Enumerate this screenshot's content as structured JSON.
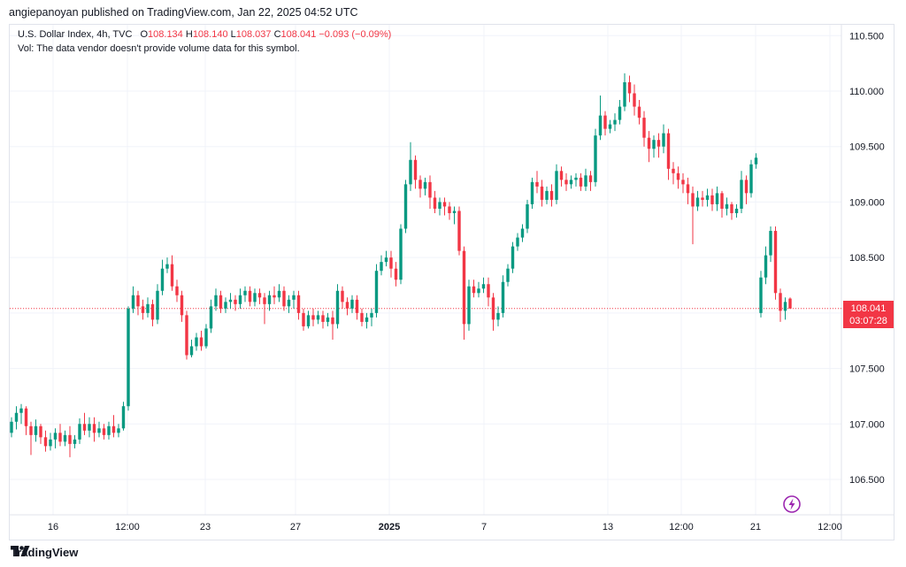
{
  "header": {
    "publisher": "angiepanoyan published on TradingView.com, Jan 22, 2025 04:52 UTC"
  },
  "legend": {
    "symbol": "U.S. Dollar Index, 4h, TVC",
    "o_label": "O",
    "o_value": "108.134",
    "h_label": "H",
    "h_value": "108.140",
    "l_label": "L",
    "l_value": "108.037",
    "c_label": "C",
    "c_value": "108.041",
    "change": "−0.093 (−0.09%)",
    "vol_note": "Vol: The data vendor doesn't provide volume data for this symbol."
  },
  "price_tag": {
    "price": "108.041",
    "countdown": "03:07:28"
  },
  "footer": {
    "brand": "TradingView"
  },
  "colors": {
    "up": "#089981",
    "down": "#f23645",
    "grid": "#f0f3fa",
    "text": "#131722"
  },
  "chart_data": {
    "type": "candlestick",
    "title": "U.S. Dollar Index, 4h, TVC",
    "ylim": [
      106.2,
      110.75
    ],
    "y_ticks": [
      "110.500",
      "110.000",
      "109.500",
      "109.000",
      "108.500",
      "108.000",
      "107.500",
      "107.000",
      "106.500"
    ],
    "x_ticks": [
      "16",
      "12:00",
      "23",
      "27",
      "2025",
      "7",
      "13",
      "12:00",
      "21",
      "12:00"
    ],
    "last_price": 108.041,
    "series": [
      [
        106.92,
        107.02,
        107.06,
        106.88
      ],
      [
        107.02,
        107.1,
        107.16,
        106.95
      ],
      [
        107.1,
        107.14,
        107.18,
        107.0
      ],
      [
        107.14,
        106.98,
        107.16,
        106.9
      ],
      [
        106.98,
        106.9,
        107.02,
        106.72
      ],
      [
        106.9,
        106.98,
        107.04,
        106.84
      ],
      [
        106.98,
        106.88,
        107.0,
        106.82
      ],
      [
        106.88,
        106.8,
        106.94,
        106.75
      ],
      [
        106.8,
        106.86,
        106.92,
        106.76
      ],
      [
        106.86,
        106.92,
        106.96,
        106.78
      ],
      [
        106.92,
        106.84,
        107.0,
        106.8
      ],
      [
        106.84,
        106.9,
        106.94,
        106.8
      ],
      [
        106.9,
        106.82,
        106.98,
        106.7
      ],
      [
        106.82,
        106.86,
        106.9,
        106.78
      ],
      [
        106.86,
        107.0,
        107.05,
        106.82
      ],
      [
        107.0,
        106.94,
        107.1,
        106.9
      ],
      [
        106.94,
        107.0,
        107.06,
        106.88
      ],
      [
        107.0,
        106.92,
        107.06,
        106.84
      ],
      [
        106.92,
        106.96,
        107.02,
        106.88
      ],
      [
        106.96,
        106.9,
        107.0,
        106.86
      ],
      [
        106.9,
        106.98,
        107.02,
        106.86
      ],
      [
        106.98,
        106.92,
        107.08,
        106.88
      ],
      [
        106.92,
        106.96,
        107.0,
        106.88
      ],
      [
        106.96,
        107.16,
        107.2,
        106.94
      ],
      [
        107.16,
        108.04,
        108.06,
        107.12
      ],
      [
        108.04,
        108.16,
        108.24,
        108.0
      ],
      [
        108.16,
        108.06,
        108.2,
        107.98
      ],
      [
        108.06,
        108.0,
        108.12,
        107.94
      ],
      [
        108.0,
        108.08,
        108.14,
        107.96
      ],
      [
        108.08,
        107.94,
        108.12,
        107.88
      ],
      [
        107.94,
        108.2,
        108.26,
        107.9
      ],
      [
        108.2,
        108.4,
        108.48,
        108.16
      ],
      [
        108.4,
        108.44,
        108.5,
        108.36
      ],
      [
        108.44,
        108.24,
        108.52,
        108.2
      ],
      [
        108.24,
        108.16,
        108.3,
        108.1
      ],
      [
        108.16,
        107.98,
        108.2,
        107.92
      ],
      [
        107.98,
        107.62,
        108.02,
        107.58
      ],
      [
        107.62,
        107.7,
        107.76,
        107.6
      ],
      [
        107.7,
        107.78,
        107.82,
        107.66
      ],
      [
        107.78,
        107.7,
        107.84,
        107.66
      ],
      [
        107.7,
        107.86,
        107.9,
        107.68
      ],
      [
        107.86,
        108.06,
        108.12,
        107.82
      ],
      [
        108.06,
        108.16,
        108.22,
        108.02
      ],
      [
        108.16,
        108.04,
        108.2,
        108.0
      ],
      [
        108.04,
        108.1,
        108.14,
        108.0
      ],
      [
        108.1,
        108.12,
        108.18,
        108.04
      ],
      [
        108.12,
        108.08,
        108.16,
        108.02
      ],
      [
        108.08,
        108.16,
        108.22,
        108.04
      ],
      [
        108.16,
        108.2,
        108.24,
        108.1
      ],
      [
        108.2,
        108.1,
        108.24,
        108.06
      ],
      [
        108.1,
        108.18,
        108.22,
        108.06
      ],
      [
        108.18,
        108.14,
        108.22,
        108.08
      ],
      [
        108.14,
        108.08,
        108.18,
        107.9
      ],
      [
        108.08,
        108.16,
        108.2,
        108.02
      ],
      [
        108.16,
        108.14,
        108.24,
        108.08
      ],
      [
        108.14,
        108.2,
        108.26,
        108.1
      ],
      [
        108.2,
        108.06,
        108.24,
        108.02
      ],
      [
        108.06,
        108.12,
        108.16,
        108.0
      ],
      [
        108.12,
        108.16,
        108.2,
        108.04
      ],
      [
        108.16,
        108.0,
        108.2,
        107.94
      ],
      [
        108.0,
        107.88,
        108.04,
        107.84
      ],
      [
        107.88,
        107.98,
        108.02,
        107.86
      ],
      [
        107.98,
        107.94,
        108.04,
        107.88
      ],
      [
        107.94,
        107.98,
        108.02,
        107.9
      ],
      [
        107.98,
        107.92,
        108.02,
        107.86
      ],
      [
        107.92,
        107.96,
        108.0,
        107.88
      ],
      [
        107.96,
        107.9,
        108.02,
        107.76
      ],
      [
        107.9,
        108.2,
        108.26,
        107.86
      ],
      [
        108.2,
        108.1,
        108.24,
        108.04
      ],
      [
        108.1,
        108.04,
        108.14,
        107.98
      ],
      [
        108.04,
        108.12,
        108.16,
        108.0
      ],
      [
        108.12,
        108.0,
        108.16,
        107.94
      ],
      [
        108.0,
        107.92,
        108.04,
        107.88
      ],
      [
        107.92,
        107.96,
        108.0,
        107.86
      ],
      [
        107.96,
        108.0,
        108.04,
        107.88
      ],
      [
        108.0,
        108.38,
        108.44,
        107.96
      ],
      [
        108.38,
        108.46,
        108.52,
        108.34
      ],
      [
        108.46,
        108.5,
        108.56,
        108.42
      ],
      [
        108.5,
        108.4,
        108.56,
        108.32
      ],
      [
        108.4,
        108.3,
        108.46,
        108.24
      ],
      [
        108.3,
        108.76,
        108.8,
        108.26
      ],
      [
        108.76,
        109.16,
        109.2,
        108.72
      ],
      [
        109.16,
        109.38,
        109.54,
        109.1
      ],
      [
        109.38,
        109.2,
        109.42,
        109.12
      ],
      [
        109.2,
        109.12,
        109.24,
        109.04
      ],
      [
        109.12,
        109.18,
        109.22,
        109.06
      ],
      [
        109.18,
        109.04,
        109.24,
        108.94
      ],
      [
        109.04,
        108.94,
        109.1,
        108.9
      ],
      [
        108.94,
        109.0,
        109.04,
        108.88
      ],
      [
        109.0,
        108.96,
        109.04,
        108.88
      ],
      [
        108.96,
        108.9,
        109.0,
        108.84
      ],
      [
        108.9,
        108.92,
        108.96,
        108.8
      ],
      [
        108.92,
        108.56,
        108.96,
        108.52
      ],
      [
        108.56,
        107.9,
        108.6,
        107.76
      ],
      [
        107.9,
        108.24,
        108.3,
        107.84
      ],
      [
        108.24,
        108.18,
        108.3,
        108.14
      ],
      [
        108.18,
        108.22,
        108.28,
        108.14
      ],
      [
        108.22,
        108.26,
        108.32,
        108.18
      ],
      [
        108.26,
        108.14,
        108.32,
        108.06
      ],
      [
        108.14,
        107.94,
        108.18,
        107.84
      ],
      [
        107.94,
        108.0,
        108.06,
        107.88
      ],
      [
        108.0,
        108.28,
        108.34,
        107.96
      ],
      [
        108.28,
        108.4,
        108.44,
        108.24
      ],
      [
        108.4,
        108.6,
        108.64,
        108.36
      ],
      [
        108.6,
        108.68,
        108.72,
        108.56
      ],
      [
        108.68,
        108.76,
        108.8,
        108.64
      ],
      [
        108.76,
        108.98,
        109.02,
        108.72
      ],
      [
        108.98,
        109.18,
        109.22,
        108.94
      ],
      [
        109.18,
        109.14,
        109.28,
        109.08
      ],
      [
        109.14,
        109.02,
        109.2,
        108.96
      ],
      [
        109.02,
        109.1,
        109.14,
        108.98
      ],
      [
        109.1,
        109.02,
        109.16,
        108.96
      ],
      [
        109.02,
        109.28,
        109.34,
        108.98
      ],
      [
        109.28,
        109.2,
        109.32,
        109.14
      ],
      [
        109.2,
        109.16,
        109.26,
        109.1
      ],
      [
        109.16,
        109.2,
        109.24,
        109.12
      ],
      [
        109.2,
        109.22,
        109.26,
        109.14
      ],
      [
        109.22,
        109.14,
        109.26,
        109.1
      ],
      [
        109.14,
        109.24,
        109.3,
        109.1
      ],
      [
        109.24,
        109.18,
        109.28,
        109.1
      ],
      [
        109.18,
        109.6,
        109.66,
        109.14
      ],
      [
        109.6,
        109.78,
        109.96,
        109.56
      ],
      [
        109.78,
        109.66,
        109.82,
        109.6
      ],
      [
        109.66,
        109.7,
        109.74,
        109.62
      ],
      [
        109.7,
        109.74,
        109.8,
        109.64
      ],
      [
        109.74,
        109.86,
        109.92,
        109.7
      ],
      [
        109.86,
        110.08,
        110.16,
        109.82
      ],
      [
        110.08,
        109.98,
        110.14,
        109.9
      ],
      [
        109.98,
        109.86,
        110.06,
        109.78
      ],
      [
        109.86,
        109.76,
        109.92,
        109.7
      ],
      [
        109.76,
        109.58,
        109.82,
        109.5
      ],
      [
        109.58,
        109.48,
        109.64,
        109.36
      ],
      [
        109.48,
        109.56,
        109.6,
        109.4
      ],
      [
        109.56,
        109.5,
        109.62,
        109.4
      ],
      [
        109.5,
        109.62,
        109.7,
        109.44
      ],
      [
        109.62,
        109.3,
        109.66,
        109.2
      ],
      [
        109.3,
        109.26,
        109.36,
        109.16
      ],
      [
        109.26,
        109.2,
        109.32,
        109.12
      ],
      [
        109.2,
        109.16,
        109.26,
        109.08
      ],
      [
        109.16,
        109.08,
        109.22,
        108.98
      ],
      [
        109.08,
        108.96,
        109.14,
        108.62
      ],
      [
        108.96,
        109.04,
        109.1,
        108.92
      ],
      [
        109.04,
        109.02,
        109.1,
        108.96
      ],
      [
        109.02,
        109.06,
        109.12,
        108.96
      ],
      [
        109.06,
        108.98,
        109.12,
        108.92
      ],
      [
        108.98,
        109.08,
        109.14,
        108.92
      ],
      [
        109.08,
        108.94,
        109.1,
        108.86
      ],
      [
        108.94,
        108.98,
        109.04,
        108.88
      ],
      [
        108.98,
        108.9,
        109.0,
        108.84
      ],
      [
        108.9,
        108.94,
        108.98,
        108.86
      ],
      [
        108.94,
        109.2,
        109.28,
        108.9
      ],
      [
        109.2,
        109.08,
        109.24,
        108.98
      ],
      [
        109.08,
        109.34,
        109.38,
        109.04
      ],
      [
        109.34,
        109.4,
        109.44,
        109.3
      ],
      [
        108.0,
        108.32,
        108.38,
        107.96
      ],
      [
        108.32,
        108.52,
        108.6,
        108.26
      ],
      [
        108.52,
        108.74,
        108.78,
        108.46
      ],
      [
        108.74,
        108.18,
        108.78,
        108.12
      ],
      [
        108.18,
        108.02,
        108.22,
        107.92
      ],
      [
        108.02,
        108.1,
        108.14,
        107.94
      ],
      [
        108.13,
        108.04,
        108.14,
        108.04
      ]
    ]
  }
}
